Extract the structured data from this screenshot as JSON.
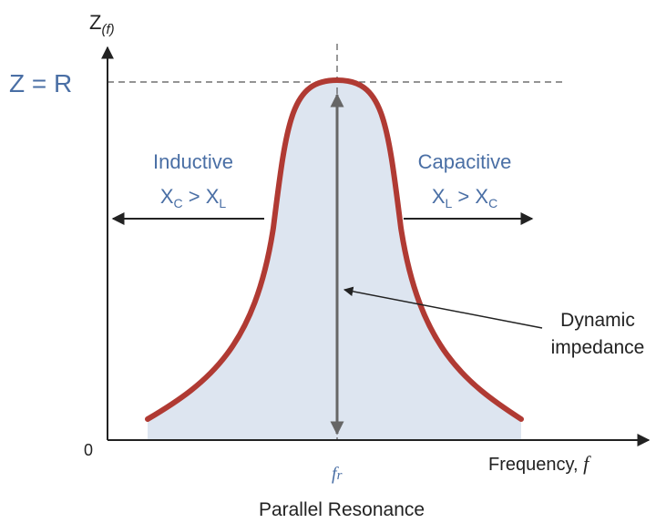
{
  "y_axis": {
    "symbol": "Z",
    "subscript": "(f)"
  },
  "peak_label": "Z = R",
  "origin_label": "0",
  "x_axis": {
    "label": "Frequency, ",
    "symbol": "f"
  },
  "resonant_frequency": {
    "symbol": "f",
    "subscript": "r"
  },
  "inductive": {
    "title": "Inductive",
    "condition": {
      "left": "X",
      "left_sub": "C",
      "op": " > ",
      "right": "X",
      "right_sub": "L"
    }
  },
  "capacitive": {
    "title": "Capacitive",
    "condition": {
      "left": "X",
      "left_sub": "L",
      "op": " > ",
      "right": "X",
      "right_sub": "C"
    }
  },
  "annotation": {
    "line1": "Dynamic",
    "line2": "impedance"
  },
  "caption": "Parallel Resonance"
}
